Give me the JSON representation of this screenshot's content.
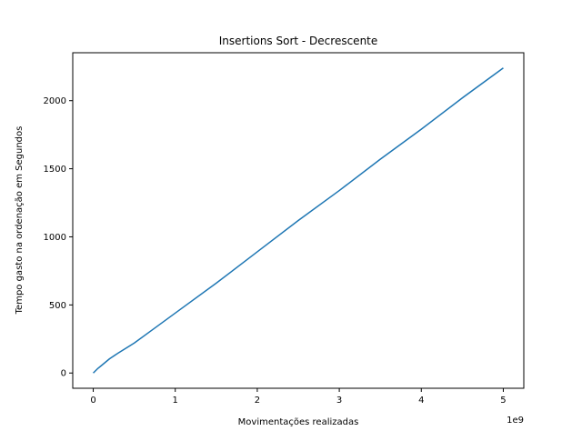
{
  "chart_data": {
    "type": "line",
    "title": "Insertions Sort - Decrescente",
    "xlabel": "Movimentações realizadas",
    "ylabel": "Tempo gasto na ordenação  em Segundos",
    "x_offset_label": "1e9",
    "xlim": [
      -0.25,
      5.25
    ],
    "ylim": [
      -112,
      2352
    ],
    "x_ticks": [
      0,
      1,
      2,
      3,
      4,
      5
    ],
    "x_tick_labels": [
      "0",
      "1",
      "2",
      "3",
      "4",
      "5"
    ],
    "y_ticks": [
      0,
      500,
      1000,
      1500,
      2000
    ],
    "y_tick_labels": [
      "0",
      "500",
      "1000",
      "1500",
      "2000"
    ],
    "grid": false,
    "series": [
      {
        "color": "#1f77b4",
        "x": [
          0,
          0.05,
          0.1,
          0.2,
          0.3,
          0.5,
          0.75,
          1,
          1.5,
          2,
          2.5,
          3,
          3.5,
          4,
          4.5,
          5
        ],
        "y": [
          0,
          30,
          55,
          105,
          145,
          220,
          330,
          440,
          660,
          890,
          1120,
          1340,
          1570,
          1790,
          2020,
          2240
        ]
      }
    ]
  }
}
